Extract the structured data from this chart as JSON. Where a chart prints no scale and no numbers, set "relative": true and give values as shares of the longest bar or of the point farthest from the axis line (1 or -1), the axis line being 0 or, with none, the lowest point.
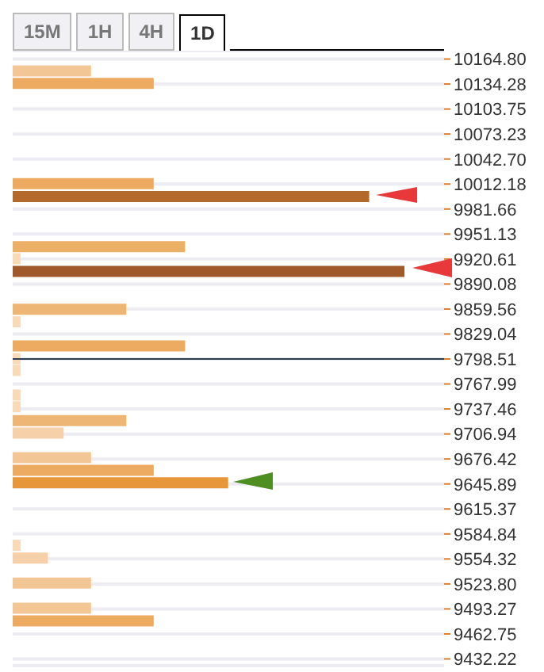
{
  "chart_data": {
    "type": "bar",
    "orientation": "horizontal",
    "relative": true,
    "annotations": [
      "15M",
      "1H",
      "4H",
      "1D"
    ],
    "x": [
      10149.9,
      10134.6,
      10012.2,
      9996.5,
      9935.3,
      9920.6,
      9905.1,
      9858.8,
      9843.5,
      9814.2,
      9798.5,
      9784.2,
      9754.2,
      9739.8,
      9723.0,
      9707.7,
      9677.7,
      9662.2,
      9646.9,
      9570.6,
      9555.1,
      9524.5,
      9493.9,
      9478.2
    ],
    "values": [
      0.2,
      0.36,
      0.36,
      0.91,
      0.44,
      0.02,
      1,
      0.29,
      0.02,
      0.44,
      0.02,
      0.02,
      0.02,
      0.02,
      0.29,
      0.13,
      0.2,
      0.36,
      0.55,
      0.02,
      0.09,
      0.2,
      0.2,
      0.36
    ],
    "colors": [
      "#f3c795",
      "#ecab60",
      "#ecab60",
      "#b4692b",
      "#ecaf66",
      "#f8d9b8",
      "#a0592a",
      "#eeb674",
      "#f8d9b8",
      "#ecab60",
      "#f8d9b8",
      "#f8d9b8",
      "#f8d9b8",
      "#f8d9b8",
      "#eeb674",
      "#f5d0a8",
      "#f3c795",
      "#edab62",
      "#e8963a",
      "#f8d9b8",
      "#f5d0a8",
      "#f3c795",
      "#f3c795",
      "#edab62"
    ],
    "ylim": [
      9424,
      10175
    ],
    "yticks": [
      {
        "value": 10164.8,
        "label": "10164.80"
      },
      10134.28,
      10103.75,
      10073.23,
      {
        "value": 10042.7,
        "label": "10042.70"
      },
      10012.18,
      9981.66,
      9951.13,
      9920.61,
      9890.08,
      9859.56,
      9829.04,
      9798.51,
      9767.99,
      9737.46,
      9706.94,
      9676.42,
      9645.89,
      9615.37,
      9584.84,
      9554.32,
      {
        "value": 9523.8,
        "label": "9523.80"
      },
      9493.27,
      9462.75,
      9432.22
    ],
    "grid": "y",
    "ref_lines": [
      {
        "axis": "y",
        "value": 9798.51,
        "color": "#2c3e50"
      }
    ]
  }
}
